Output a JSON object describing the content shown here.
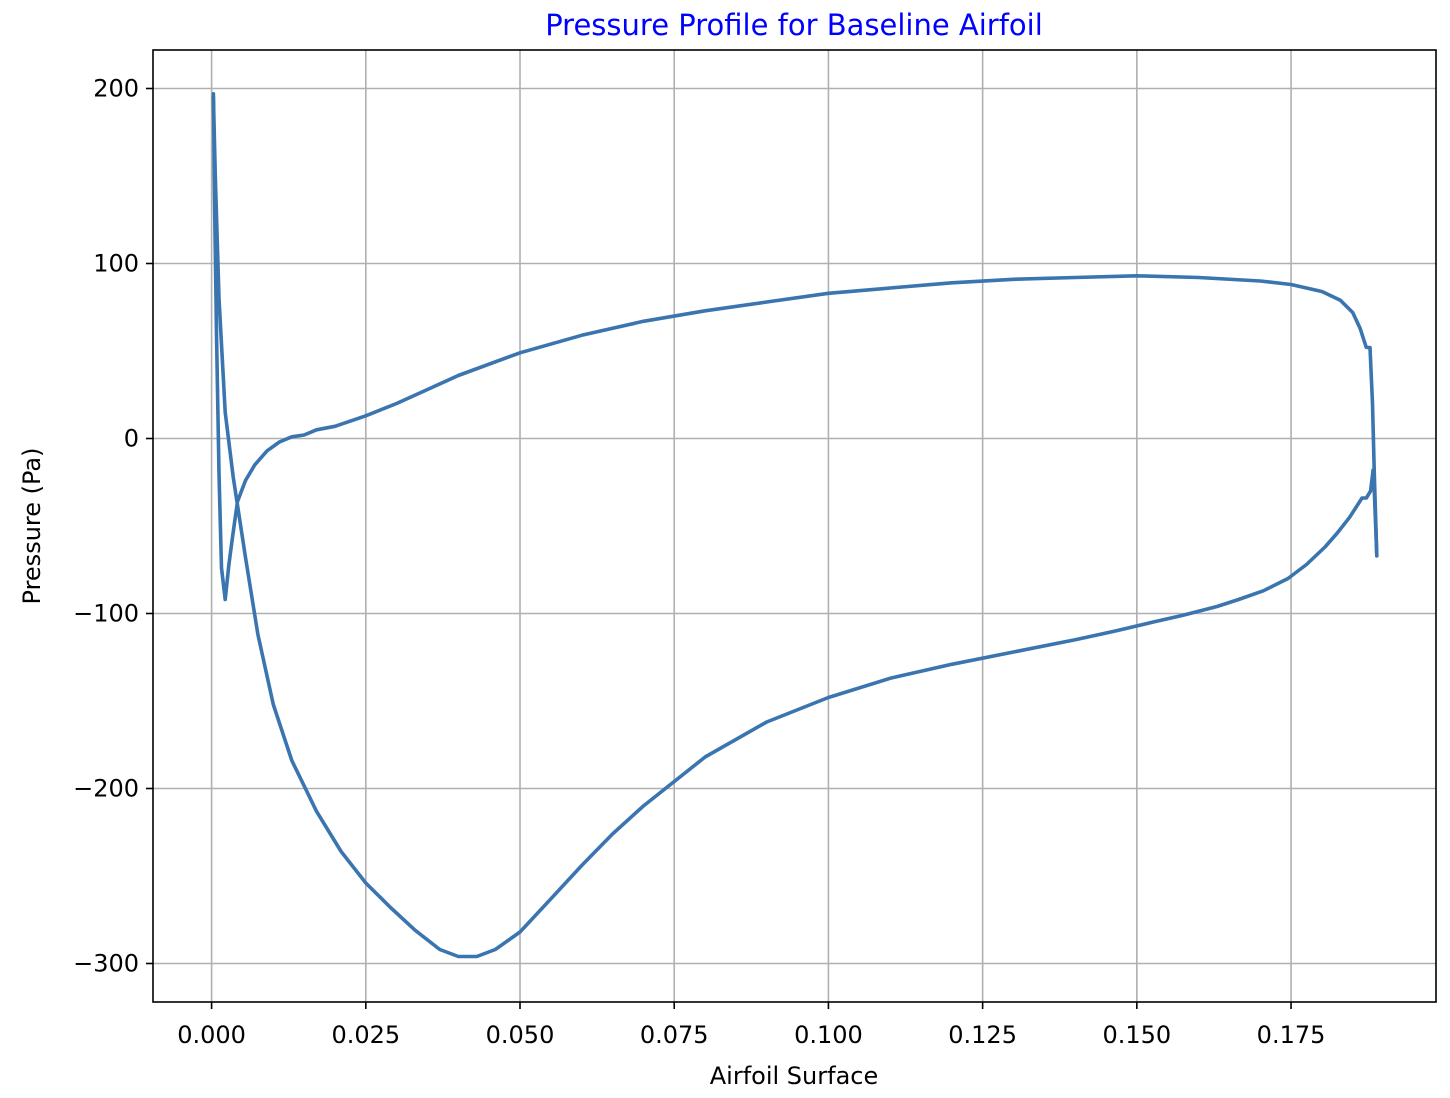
{
  "chart_data": {
    "type": "line",
    "title": "Pressure Profile for Baseline Airfoil",
    "title_color": "#0000ff",
    "xlabel": "Airfoil Surface",
    "ylabel": "Pressure (Pa)",
    "xlim": [
      -0.0095,
      0.1985
    ],
    "ylim": [
      -322,
      222
    ],
    "grid": true,
    "x_ticks": [
      0.0,
      0.025,
      0.05,
      0.075,
      0.1,
      0.125,
      0.15,
      0.175
    ],
    "x_tick_labels": [
      "0.000",
      "0.025",
      "0.050",
      "0.075",
      "0.100",
      "0.125",
      "0.150",
      "0.175"
    ],
    "y_ticks": [
      200,
      100,
      0,
      -100,
      -200,
      -300
    ],
    "y_tick_labels": [
      "200",
      "100",
      "0",
      "−100",
      "−200",
      "−300"
    ],
    "line_color": "#3a75b0",
    "series": [
      {
        "values_xy": [
          [
            0.1889,
            -67
          ],
          [
            0.1885,
            -30
          ],
          [
            0.1883,
            -18
          ],
          [
            0.1879,
            -30
          ],
          [
            0.1872,
            -34
          ],
          [
            0.1865,
            -34
          ],
          [
            0.1845,
            -45
          ],
          [
            0.1825,
            -54
          ],
          [
            0.1805,
            -62
          ],
          [
            0.1775,
            -72
          ],
          [
            0.1745,
            -80
          ],
          [
            0.1705,
            -87
          ],
          [
            0.1665,
            -92
          ],
          [
            0.163,
            -96
          ],
          [
            0.1575,
            -101
          ],
          [
            0.1525,
            -105
          ],
          [
            0.1465,
            -110
          ],
          [
            0.14,
            -115
          ],
          [
            0.13,
            -122
          ],
          [
            0.12,
            -129
          ],
          [
            0.11,
            -137
          ],
          [
            0.1,
            -148
          ],
          [
            0.09,
            -162
          ],
          [
            0.08,
            -182
          ],
          [
            0.07,
            -210
          ],
          [
            0.065,
            -226
          ],
          [
            0.06,
            -244
          ],
          [
            0.055,
            -263
          ],
          [
            0.05,
            -282
          ],
          [
            0.046,
            -292
          ],
          [
            0.043,
            -296
          ],
          [
            0.04,
            -296
          ],
          [
            0.037,
            -292
          ],
          [
            0.033,
            -281
          ],
          [
            0.029,
            -268
          ],
          [
            0.025,
            -254
          ],
          [
            0.021,
            -236
          ],
          [
            0.017,
            -213
          ],
          [
            0.013,
            -184
          ],
          [
            0.01,
            -152
          ],
          [
            0.0075,
            -112
          ],
          [
            0.0055,
            -68
          ],
          [
            0.0035,
            -22
          ],
          [
            0.0022,
            15
          ],
          [
            0.0012,
            80
          ],
          [
            0.0006,
            150
          ],
          [
            0.0003,
            195
          ]
        ]
      },
      {
        "values_xy": [
          [
            0.0003,
            197
          ],
          [
            0.0005,
            130
          ],
          [
            0.0008,
            60
          ],
          [
            0.0012,
            -20
          ],
          [
            0.0016,
            -74
          ],
          [
            0.0022,
            -92
          ],
          [
            0.0028,
            -72
          ],
          [
            0.0034,
            -56
          ],
          [
            0.0042,
            -36
          ],
          [
            0.0055,
            -24
          ],
          [
            0.007,
            -15
          ],
          [
            0.009,
            -7
          ],
          [
            0.011,
            -2
          ],
          [
            0.013,
            1
          ],
          [
            0.015,
            2
          ],
          [
            0.017,
            5
          ],
          [
            0.02,
            7
          ],
          [
            0.025,
            13
          ],
          [
            0.03,
            20
          ],
          [
            0.035,
            28
          ],
          [
            0.04,
            36
          ],
          [
            0.05,
            49
          ],
          [
            0.06,
            59
          ],
          [
            0.07,
            67
          ],
          [
            0.08,
            73
          ],
          [
            0.09,
            78
          ],
          [
            0.1,
            83
          ],
          [
            0.11,
            86
          ],
          [
            0.12,
            89
          ],
          [
            0.13,
            91
          ],
          [
            0.14,
            92
          ],
          [
            0.15,
            93
          ],
          [
            0.16,
            92
          ],
          [
            0.17,
            90
          ],
          [
            0.175,
            88
          ],
          [
            0.18,
            84
          ],
          [
            0.183,
            79
          ],
          [
            0.185,
            72
          ],
          [
            0.1862,
            63
          ],
          [
            0.1872,
            52
          ],
          [
            0.1878,
            52
          ],
          [
            0.1882,
            20
          ],
          [
            0.1885,
            -20
          ],
          [
            0.1889,
            -67
          ]
        ]
      }
    ]
  }
}
